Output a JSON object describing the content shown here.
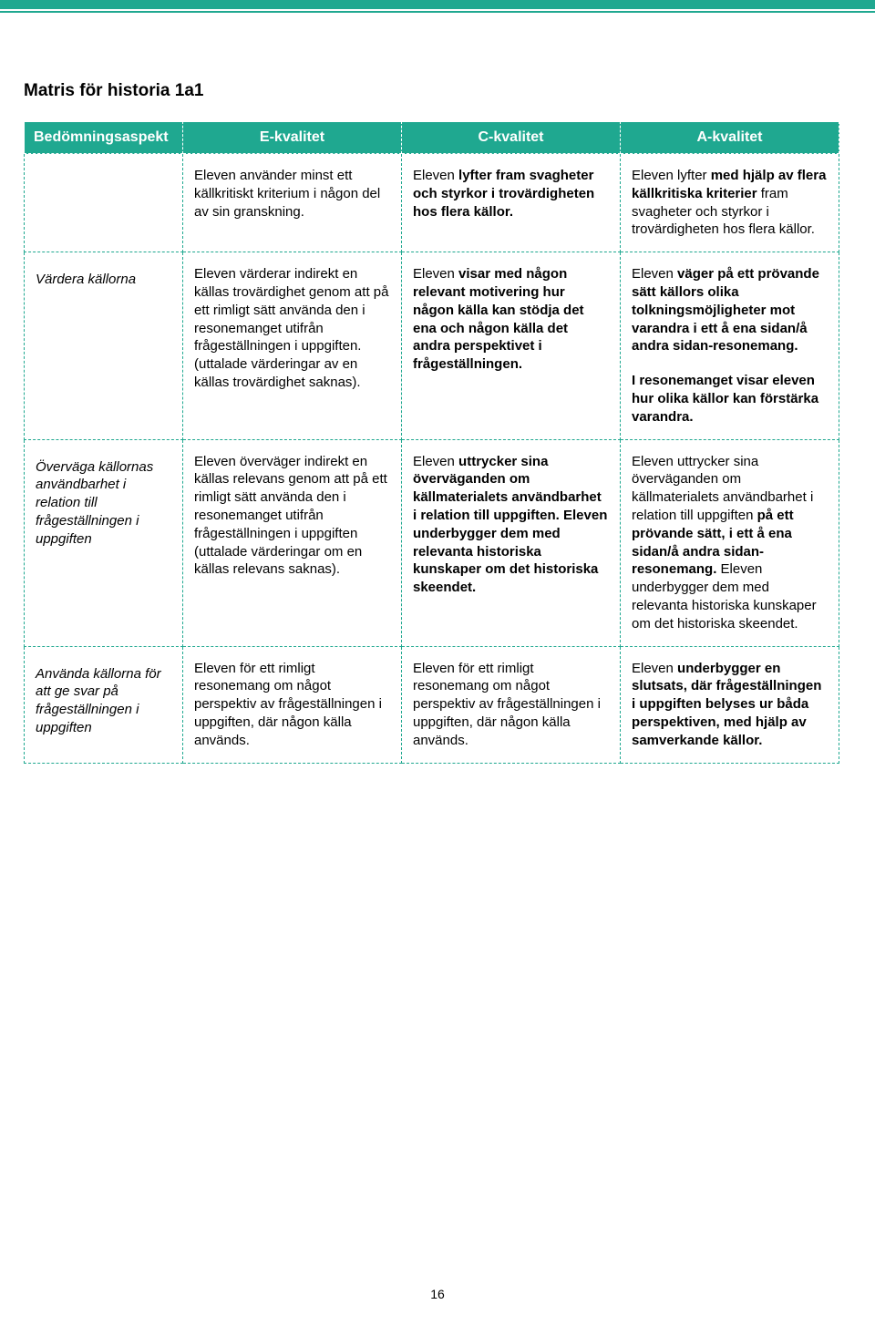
{
  "colors": {
    "teal": "#1fa890",
    "white": "#ffffff",
    "text": "#000000"
  },
  "title": "Matris för historia 1a1",
  "header": {
    "aspect": "Bedömningsaspekt",
    "e": "E-kvalitet",
    "c": "C-kvalitet",
    "a": "A-kvalitet"
  },
  "rows": {
    "r1": {
      "aspect": "",
      "e": {
        "p1": "Eleven använder minst ett källkritiskt kriterium i någon del av sin granskning."
      },
      "c": {
        "p1": "Eleven ",
        "b1": "lyfter fram svagheter och styrkor i trovärdigheten hos flera källor."
      },
      "a": {
        "p1": "Eleven lyfter ",
        "b1": "med hjälp av flera källkritiska kriterier ",
        "p2": "fram svagheter och styrkor i trovärdigheten hos flera källor."
      }
    },
    "r2": {
      "aspect": "Värdera källorna",
      "e": {
        "p1": "Eleven värderar indirekt en källas trovärdighet genom att på ett rimligt sätt använda den i resonemanget utifrån frågeställningen i uppgiften. (uttalade värderingar av en källas trovärdighet saknas)."
      },
      "c": {
        "p1": "Eleven ",
        "b1": "visar med någon relevant motivering hur någon källa kan stödja det ena och någon källa det andra perspektivet i frågeställningen."
      },
      "a": {
        "p1": "Eleven ",
        "b1": "väger på ett prövande sätt källors olika tolkningsmöjligheter mot varandra i ett å ena sidan/å andra sidan-resonemang.",
        "p2b": "I resonemanget visar eleven hur olika källor kan förstärka varandra."
      }
    },
    "r3": {
      "aspect": "Överväga källornas användbarhet i relation till frågeställningen i uppgiften",
      "e": {
        "p1": "Eleven överväger indirekt en källas relevans genom att på ett rimligt sätt använda den i resonemanget utifrån frågeställningen i uppgiften (uttalade värderingar om en källas relevans saknas)."
      },
      "c": {
        "p1": "Eleven ",
        "b1": "uttrycker sina överväganden om källmaterialets användbarhet i relation till uppgiften. Eleven underbygger dem med relevanta historiska kunskaper om det historiska skeendet."
      },
      "a": {
        "p1a": "Eleven uttrycker sina överväganden om källmaterialets användbarhet i relation till uppgiften ",
        "b1": "på ett prövande sätt, i ett å ena sidan/å andra sidan-resonemang. ",
        "p1b": "Eleven underbygger dem med relevanta historiska kunskaper om det historiska skeendet."
      }
    },
    "r4": {
      "aspect": "Använda källorna för att ge svar på frågeställningen i uppgiften",
      "e": {
        "p1": "Eleven för ett rimligt resonemang om något perspektiv av frågeställningen i uppgiften, där någon källa används."
      },
      "c": {
        "p1": "Eleven för ett rimligt resonemang om något perspektiv av frågeställningen i uppgiften, där någon källa används."
      },
      "a": {
        "p1": "Eleven ",
        "b1": "underbygger en slutsats, där frågeställningen i uppgiften belyses ur båda perspektiven, med hjälp av samverkande källor."
      }
    }
  },
  "page_number": "16"
}
